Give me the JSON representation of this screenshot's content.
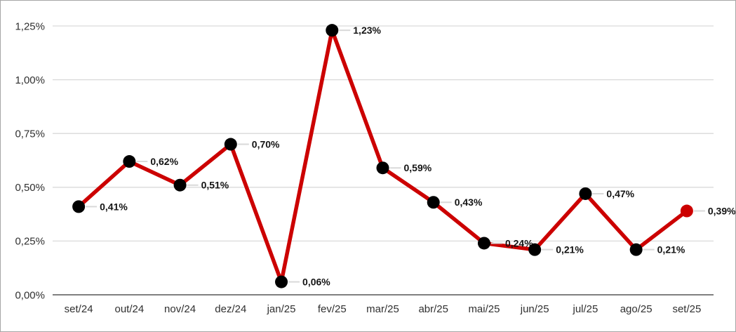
{
  "figure": {
    "background": "#ffffff",
    "border_color": "#a6a6a6"
  },
  "chart_data": {
    "type": "line",
    "title": "",
    "xlabel": "",
    "ylabel": "",
    "legend": false,
    "grid": true,
    "categories": [
      "set/24",
      "out/24",
      "nov/24",
      "dez/24",
      "jan/25",
      "fev/25",
      "mar/25",
      "abr/25",
      "mai/25",
      "jun/25",
      "jul/25",
      "ago/25",
      "set/25"
    ],
    "series": [
      {
        "name": "monthly-percentage",
        "values": [
          0.41,
          0.62,
          0.51,
          0.7,
          0.06,
          1.23,
          0.59,
          0.43,
          0.24,
          0.21,
          0.47,
          0.21,
          0.39
        ]
      }
    ],
    "data_labels": [
      "0,41%",
      "0,62%",
      "0,51%",
      "0,70%",
      "0,06%",
      "1,23%",
      "0,59%",
      "0,43%",
      "0,24%",
      "0,21%",
      "0,47%",
      "0,21%",
      "0,39%"
    ],
    "y_ticks": {
      "values": [
        0,
        0.25,
        0.5,
        0.75,
        1.0,
        1.25
      ],
      "labels": [
        "0,00%",
        "0,25%",
        "0,50%",
        "0,75%",
        "1,00%",
        "1,25%"
      ]
    },
    "ylim": [
      0,
      1.25
    ],
    "colors": {
      "line": "#cc0000",
      "marker": "#000000",
      "last_marker": "#cc0000",
      "gridline": "#d9d9d9",
      "axis_baseline": "#808080",
      "leader_line": "#d9d9d9",
      "data_label": "#141414",
      "tick_label": "#303030"
    }
  }
}
